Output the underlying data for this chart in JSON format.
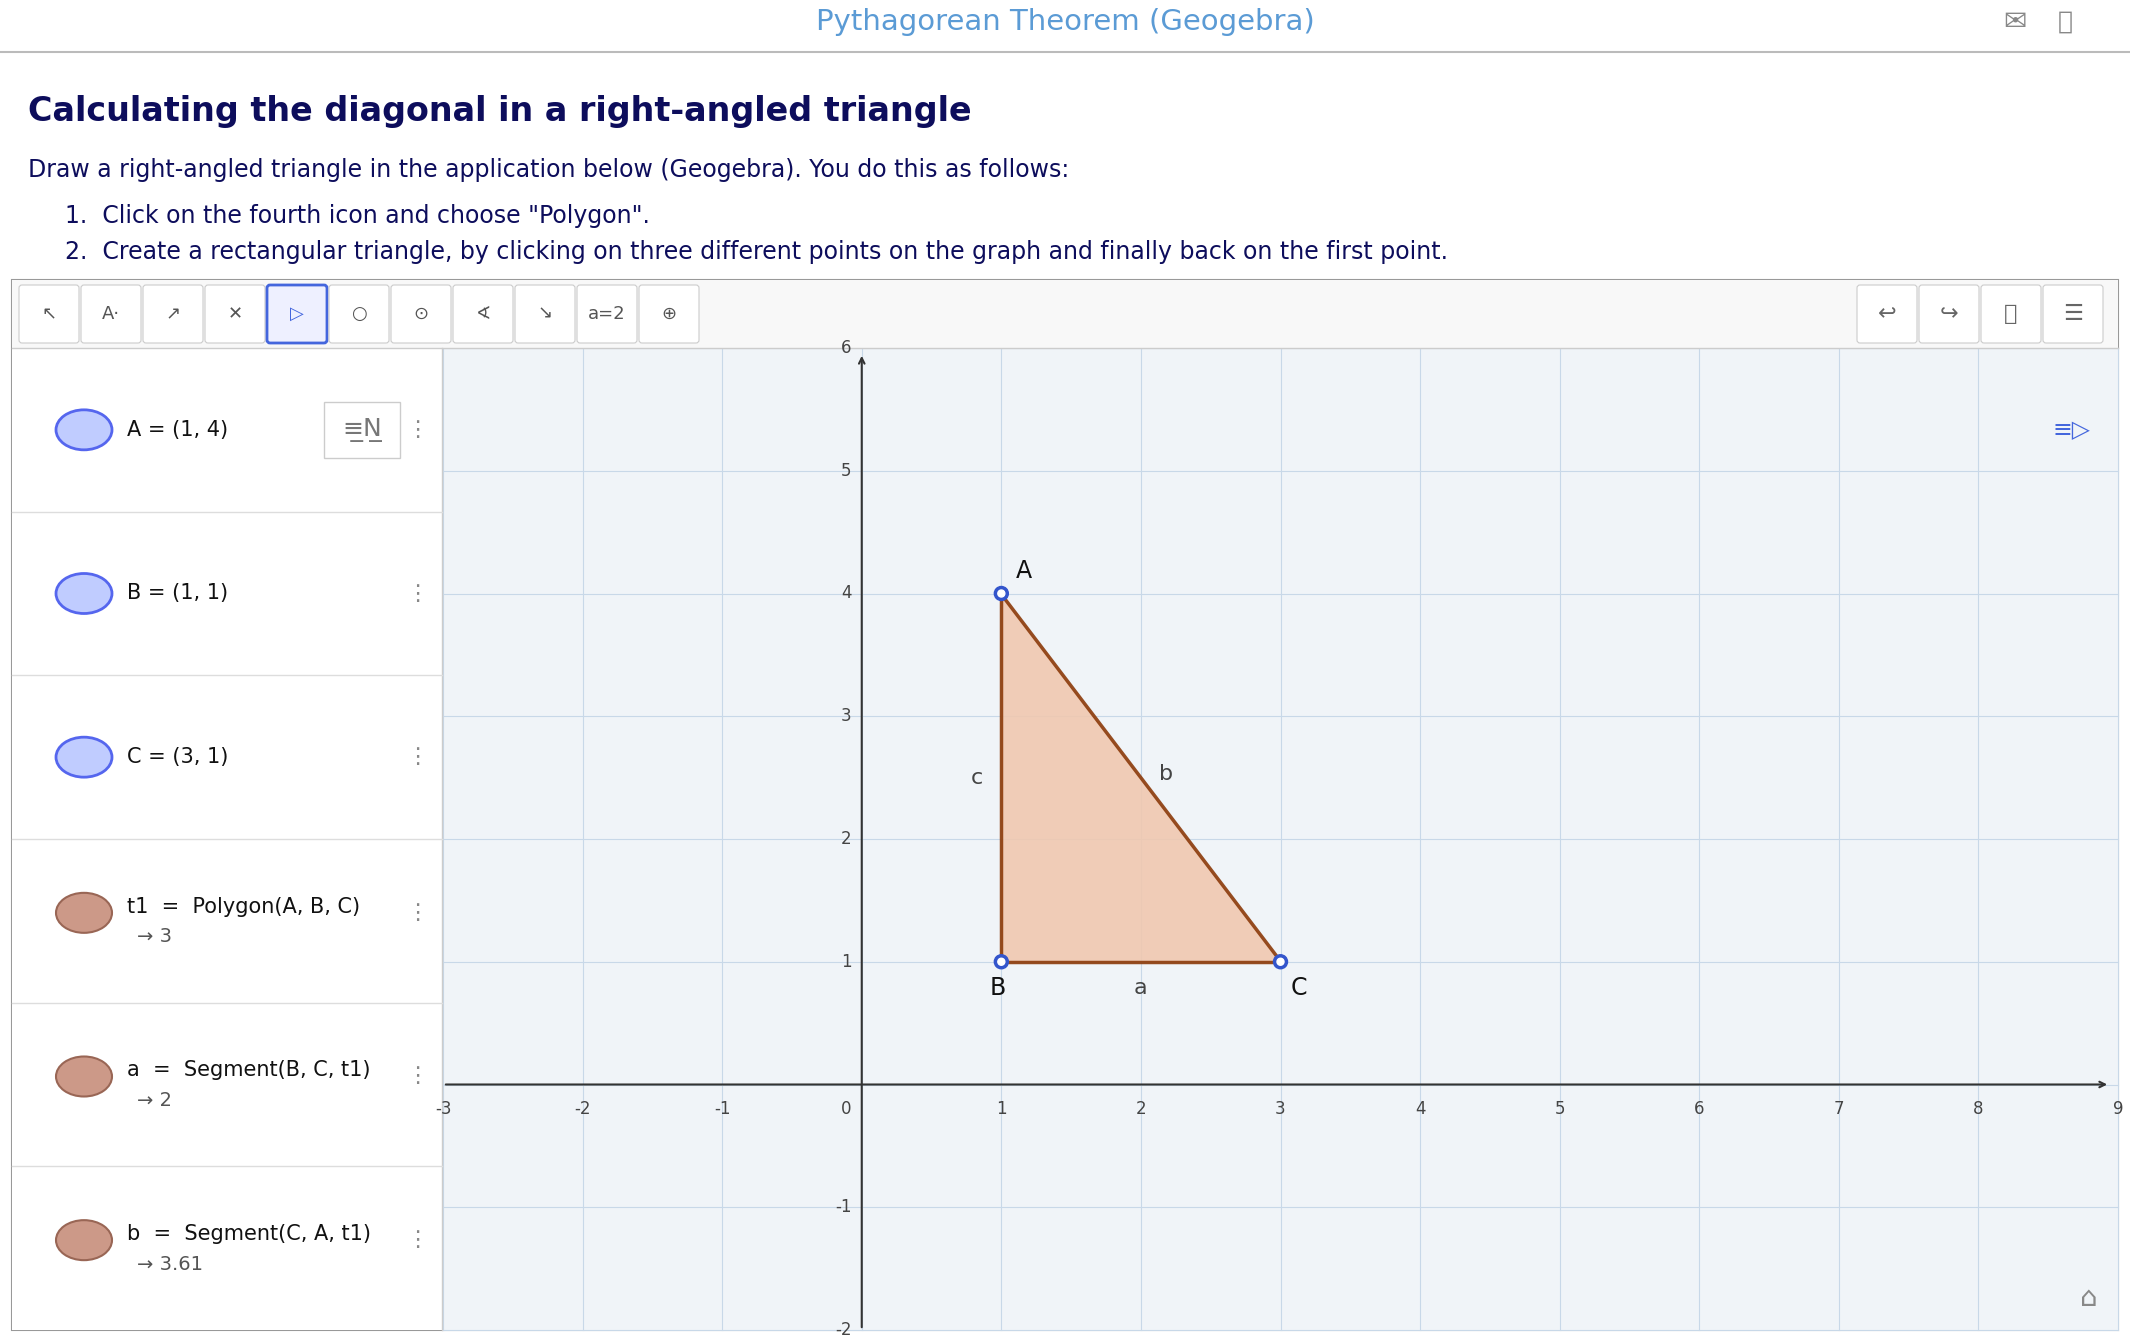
{
  "title": "Pythagorean Theorem (Geogebra)",
  "title_color": "#5b9bd5",
  "bg_color": "#ffffff",
  "header_line_color": "#bbbbbb",
  "section_title": "Calculating the diagonal in a right-angled triangle",
  "section_title_color": "#0d0d5c",
  "body_text": "Draw a right-angled triangle in the application below (Geogebra). You do this as follows:",
  "body_text_color": "#0d0d5c",
  "step1": "1.  Click on the fourth icon and choose \"Polygon\".",
  "step2": "2.  Create a rectangular triangle, by clicking on three different points on the graph and finally back on the first point.",
  "geogebra_border_color": "#999999",
  "geogebra_bg_color": "#f0f4f8",
  "toolbar_bg": "#f5f5f5",
  "toolbar_border": "#cccccc",
  "grid_color": "#c8d8e8",
  "axis_color": "#555555",
  "point_A": [
    1,
    4
  ],
  "point_B": [
    1,
    1
  ],
  "point_C": [
    3,
    1
  ],
  "triangle_fill": "#f0c8b0",
  "triangle_edge_color": "#8b3a0a",
  "point_color_abc": "#3355cc",
  "sidebar_items": [
    {
      "type": "hollow_blue",
      "icon_color": "#6677ee",
      "icon_fill": "#aabbff",
      "text": "A = (1, 4)",
      "has_sub": false
    },
    {
      "type": "hollow_blue",
      "icon_color": "#6677ee",
      "icon_fill": "#aabbff",
      "text": "B = (1, 1)",
      "has_sub": false
    },
    {
      "type": "hollow_blue",
      "icon_color": "#6677ee",
      "icon_fill": "#aabbff",
      "text": "C = (3, 1)",
      "has_sub": false
    },
    {
      "type": "solid_brown",
      "icon_color": "#bb8877",
      "icon_fill": "#bb8877",
      "text": "t1  =  Polygon(A, B, C)",
      "sub": "→ 3",
      "has_sub": true
    },
    {
      "type": "solid_brown",
      "icon_color": "#bb8877",
      "icon_fill": "#bb8877",
      "text": "a  =  Segment(B, C, t1)",
      "sub": "→ 2",
      "has_sub": true
    },
    {
      "type": "solid_brown",
      "icon_color": "#bb8877",
      "icon_fill": "#bb8877",
      "text": "b  =  Segment(C, A, t1)",
      "sub": "→ 3.61",
      "has_sub": true
    }
  ],
  "xmin": -3,
  "xmax": 9,
  "ymin": -2,
  "ymax": 6,
  "x_tick_labels": [
    "-2",
    "-1",
    "0",
    "1",
    "2",
    "3",
    "4",
    "5",
    "6",
    "7",
    "8",
    "9"
  ],
  "y_tick_labels": [
    "-2",
    "-1",
    "1",
    "2",
    "3",
    "4",
    "5"
  ]
}
